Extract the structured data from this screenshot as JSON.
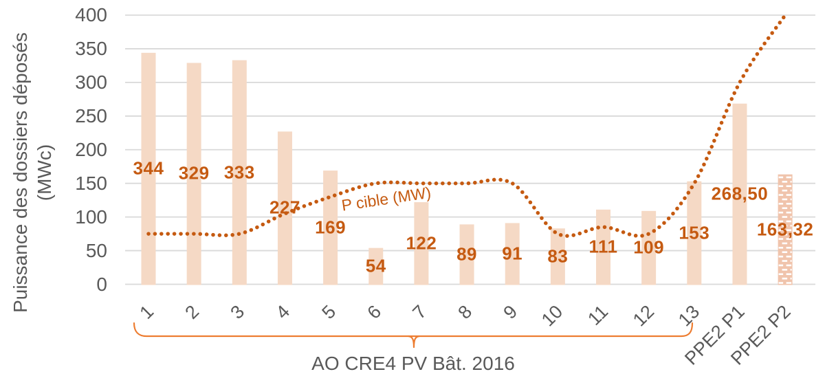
{
  "y_axis": {
    "title_line1": "Puissance des dossiers déposés",
    "title_line2": "(MWc)",
    "tick_labels": [
      "0",
      "50",
      "100",
      "150",
      "200",
      "250",
      "300",
      "350",
      "400"
    ]
  },
  "chart_data": {
    "type": "bar",
    "title": "",
    "ylabel": "Puissance des dossiers déposés (MWc)",
    "xlabel": "",
    "ylim": [
      0,
      400
    ],
    "grid_step": 50,
    "grid": "horizontal",
    "legend_position": "none",
    "categories": [
      "1",
      "2",
      "3",
      "4",
      "5",
      "6",
      "7",
      "8",
      "9",
      "10",
      "11",
      "12",
      "13",
      "PPE2 P1",
      "PPE2 P2"
    ],
    "series": [
      {
        "name": "Puissance des dossiers déposés (MWc)",
        "type": "bar",
        "values": [
          344,
          329,
          333,
          227,
          169,
          54,
          122,
          89,
          91,
          83,
          111,
          109,
          153,
          268.5,
          163.32
        ],
        "data_labels": [
          "344",
          "329",
          "333",
          "227",
          "169",
          "54",
          "122",
          "89",
          "91",
          "83",
          "111",
          "109",
          "153",
          "268,50",
          "163,32"
        ],
        "last_bar_pattern_fill": true
      },
      {
        "name": "P cible (MW)",
        "type": "smoothed_dotted_line",
        "values": [
          75,
          75,
          75,
          105,
          130,
          150,
          150,
          150,
          150,
          75,
          85,
          75,
          150,
          300,
          400
        ]
      }
    ],
    "annotations": {
      "bracket_label": "AO CRE4 PV Bât. 2016",
      "bracket_from_category": "1",
      "bracket_to_category": "13",
      "line_label": "P cible (MW)"
    }
  },
  "colors": {
    "bar_fill": "#F5D9C5",
    "bar_pattern_base": "#F0C4AC",
    "bar_pattern_dash": "#FFFFFF",
    "accent_orange": "#C55A11",
    "bracket_orange": "#ED7D31",
    "axis_text": "#595959",
    "gridline": "#D9D9D9"
  }
}
